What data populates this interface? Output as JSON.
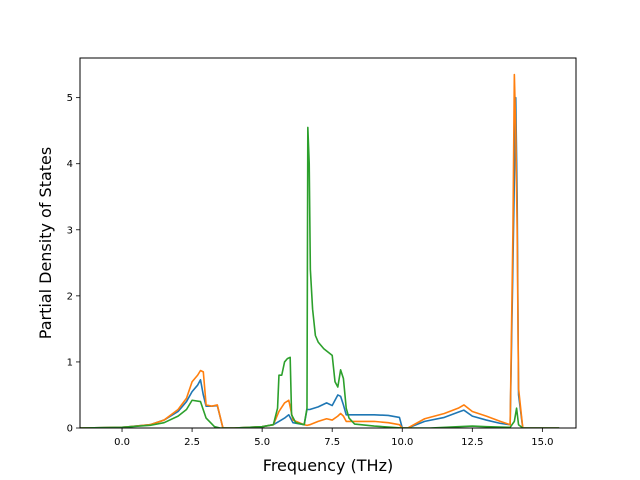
{
  "chart_data": {
    "type": "line",
    "title": "",
    "xlabel": "Frequency (THz)",
    "ylabel": "Partial Density of States",
    "xlim": [
      -1.5,
      16.2
    ],
    "ylim": [
      0,
      5.6
    ],
    "xticks": [
      0.0,
      2.5,
      5.0,
      7.5,
      10.0,
      12.5,
      15.0
    ],
    "xtick_labels": [
      "0.0",
      "2.5",
      "5.0",
      "7.5",
      "10.0",
      "12.5",
      "15.0"
    ],
    "yticks": [
      0,
      1,
      2,
      3,
      4,
      5
    ],
    "ytick_labels": [
      "0",
      "1",
      "2",
      "3",
      "4",
      "5"
    ],
    "grid": false,
    "legend": "none",
    "series": [
      {
        "color": "#1f77b4",
        "x": [
          -1.5,
          0.0,
          1.0,
          1.5,
          2.0,
          2.3,
          2.5,
          2.7,
          2.8,
          2.9,
          3.0,
          3.2,
          3.4,
          3.6,
          4.0,
          5.0,
          5.4,
          5.6,
          5.8,
          5.95,
          6.1,
          6.5,
          6.6,
          6.7,
          7.0,
          7.3,
          7.5,
          7.7,
          7.8,
          7.9,
          8.0,
          8.2,
          9.0,
          9.5,
          9.9,
          10.0,
          10.2,
          10.8,
          11.5,
          12.0,
          12.2,
          12.5,
          13.0,
          13.5,
          13.85,
          13.95,
          14.05,
          14.1,
          14.15,
          14.3,
          15.6
        ],
        "y": [
          0.0,
          0.01,
          0.05,
          0.12,
          0.25,
          0.4,
          0.55,
          0.65,
          0.73,
          0.5,
          0.33,
          0.33,
          0.34,
          0.0,
          0.0,
          0.02,
          0.05,
          0.1,
          0.15,
          0.2,
          0.08,
          0.05,
          0.28,
          0.28,
          0.32,
          0.38,
          0.34,
          0.5,
          0.48,
          0.35,
          0.2,
          0.2,
          0.2,
          0.19,
          0.16,
          0.0,
          0.0,
          0.1,
          0.16,
          0.24,
          0.27,
          0.18,
          0.12,
          0.07,
          0.05,
          2.5,
          5.0,
          3.5,
          0.5,
          0.0,
          0.0
        ]
      },
      {
        "color": "#ff7f0e",
        "x": [
          -1.5,
          0.0,
          1.0,
          1.5,
          2.0,
          2.3,
          2.5,
          2.7,
          2.8,
          2.9,
          3.0,
          3.2,
          3.4,
          3.6,
          4.0,
          5.0,
          5.4,
          5.6,
          5.8,
          5.95,
          6.1,
          6.5,
          6.6,
          6.7,
          7.0,
          7.3,
          7.5,
          7.7,
          7.8,
          7.9,
          8.0,
          8.2,
          9.0,
          9.5,
          9.9,
          10.0,
          10.2,
          10.8,
          11.5,
          12.0,
          12.2,
          12.5,
          13.0,
          13.5,
          13.85,
          13.95,
          14.0,
          14.05,
          14.1,
          14.15,
          14.3,
          15.6
        ],
        "y": [
          0.0,
          0.01,
          0.05,
          0.12,
          0.28,
          0.45,
          0.7,
          0.8,
          0.87,
          0.85,
          0.35,
          0.33,
          0.35,
          0.0,
          0.0,
          0.02,
          0.05,
          0.25,
          0.38,
          0.42,
          0.12,
          0.05,
          0.04,
          0.05,
          0.1,
          0.14,
          0.12,
          0.18,
          0.22,
          0.18,
          0.1,
          0.1,
          0.1,
          0.08,
          0.05,
          0.0,
          0.0,
          0.14,
          0.22,
          0.3,
          0.35,
          0.25,
          0.18,
          0.1,
          0.05,
          3.0,
          5.35,
          4.5,
          3.0,
          0.6,
          0.0,
          0.0
        ]
      },
      {
        "color": "#2ca02c",
        "x": [
          -1.5,
          0.0,
          1.0,
          1.5,
          2.0,
          2.3,
          2.5,
          2.8,
          3.0,
          3.3,
          3.5,
          4.0,
          5.0,
          5.4,
          5.55,
          5.6,
          5.7,
          5.8,
          5.9,
          6.0,
          6.05,
          6.2,
          6.5,
          6.6,
          6.63,
          6.68,
          6.72,
          6.8,
          6.9,
          7.0,
          7.2,
          7.5,
          7.6,
          7.7,
          7.8,
          7.9,
          8.0,
          8.1,
          8.3,
          9.0,
          10.0,
          11.0,
          12.0,
          12.5,
          13.0,
          13.85,
          14.0,
          14.08,
          14.15,
          14.3,
          15.6
        ],
        "y": [
          0.0,
          0.01,
          0.04,
          0.08,
          0.18,
          0.28,
          0.42,
          0.4,
          0.15,
          0.02,
          0.0,
          0.0,
          0.02,
          0.05,
          0.3,
          0.8,
          0.8,
          1.0,
          1.05,
          1.07,
          0.2,
          0.08,
          0.05,
          0.3,
          4.55,
          4.0,
          2.4,
          1.8,
          1.4,
          1.3,
          1.2,
          1.1,
          0.7,
          0.62,
          0.88,
          0.75,
          0.3,
          0.15,
          0.06,
          0.03,
          0.0,
          0.0,
          0.02,
          0.03,
          0.02,
          0.01,
          0.1,
          0.3,
          0.05,
          0.0,
          0.0
        ]
      }
    ]
  }
}
